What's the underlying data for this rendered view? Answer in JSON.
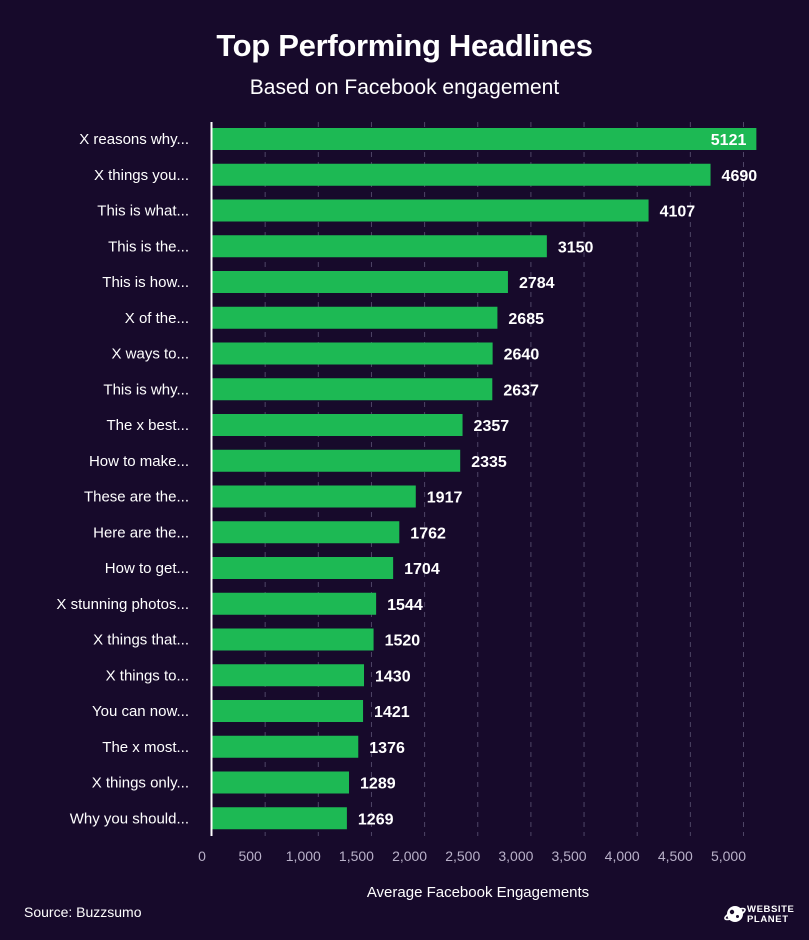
{
  "chart_data": {
    "type": "bar",
    "orientation": "horizontal",
    "title": "Top Performing Headlines",
    "subtitle": "Based on Facebook engagement",
    "xlabel": "Average Facebook Engagements",
    "ylabel": "",
    "xlim": [
      0,
      5000
    ],
    "xticks": [
      0,
      500,
      1000,
      1500,
      2000,
      2500,
      3000,
      3500,
      4000,
      4500,
      5000
    ],
    "xtick_labels": [
      "0",
      "500",
      "1,000",
      "1,500",
      "2,000",
      "2,500",
      "3,000",
      "3,500",
      "4,000",
      "4,500",
      "5,000"
    ],
    "grid": "vertical dashed",
    "data_labels": true,
    "categories": [
      "X reasons why...",
      "X things you...",
      "This is what...",
      "This is the...",
      "This is how...",
      "X of the...",
      "X ways to...",
      "This is why...",
      "The x best...",
      "How to make...",
      "These are the...",
      "Here are the...",
      "How to get...",
      "X stunning photos...",
      "X things that...",
      "X things to...",
      "You can now...",
      "The x most...",
      "X things only...",
      "Why you should..."
    ],
    "values": [
      5121,
      4690,
      4107,
      3150,
      2784,
      2685,
      2640,
      2637,
      2357,
      2335,
      1917,
      1762,
      1704,
      1544,
      1520,
      1430,
      1421,
      1376,
      1289,
      1269
    ],
    "colors": {
      "bar": "#1db954",
      "background": "#170a2b",
      "text": "#ffffff",
      "axis": "#ffffff",
      "tick_text": "#b9b1c9",
      "grid": "#4e4566"
    }
  },
  "footer": {
    "source": "Source: Buzzsumo",
    "logo_line1": "WEBSITE",
    "logo_line2": "PLANET",
    "logo_icon": "planet-icon"
  }
}
